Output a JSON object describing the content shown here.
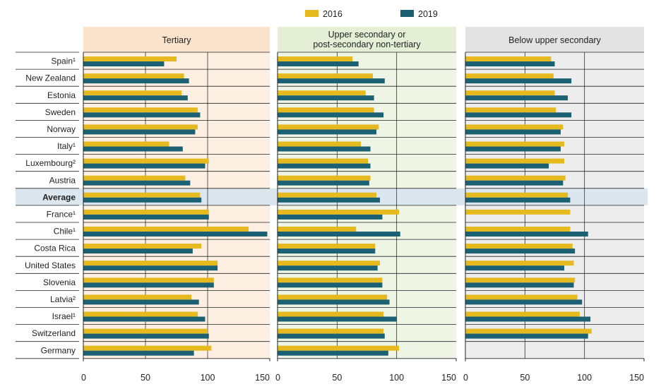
{
  "chart_data": {
    "type": "bar",
    "orientation": "horizontal",
    "legend": {
      "position": "top-center",
      "items": [
        {
          "label": "2016",
          "color": "#e6b91e"
        },
        {
          "label": "2019",
          "color": "#1b6173"
        }
      ]
    },
    "categories": [
      "Spain¹",
      "New Zealand",
      "Estonia",
      "Sweden",
      "Norway",
      "Italy¹",
      "Luxembourg²",
      "Austria",
      "Average",
      "France¹",
      "Chile¹",
      "Costa Rica",
      "United States",
      "Slovenia",
      "Latvia²",
      "Israel¹",
      "Switzerland",
      "Germany"
    ],
    "highlight_category": "Average",
    "panels": [
      {
        "title": "Tertiary",
        "background": "#fdf0e3",
        "header_background": "#fbe3cc",
        "xlim": [
          0,
          150
        ],
        "ticks": [
          0,
          50,
          100,
          150
        ],
        "series": [
          {
            "name": "2016",
            "values": [
              75,
              81,
              79,
              92,
              92,
              69,
              101,
              82,
              94,
              101,
              133,
              95,
              108,
              105,
              87,
              92,
              100,
              103
            ]
          },
          {
            "name": "2019",
            "values": [
              65,
              85,
              84,
              94,
              90,
              80,
              98,
              86,
              95,
              101,
              148,
              88,
              108,
              105,
              93,
              98,
              101,
              89
            ]
          }
        ]
      },
      {
        "title": "Upper secondary or post-secondary non-tertiary",
        "title_lines": [
          "Upper secondary or",
          "post-secondary non-tertiary"
        ],
        "background": "#eef5e4",
        "header_background": "#e4efd6",
        "xlim": [
          0,
          150
        ],
        "ticks": [
          0,
          50,
          100,
          150
        ],
        "series": [
          {
            "name": "2016",
            "values": [
              63,
              80,
              74,
              81,
              85,
              70,
              76,
              78,
              83,
              102,
              66,
              82,
              86,
              88,
              92,
              89,
              89,
              102
            ]
          },
          {
            "name": "2019",
            "values": [
              68,
              90,
              81,
              89,
              83,
              78,
              78,
              77,
              86,
              88,
              103,
              82,
              84,
              88,
              94,
              100,
              90,
              93
            ]
          }
        ]
      },
      {
        "title": "Below upper secondary",
        "background": "#ededed",
        "header_background": "#e3e3e3",
        "xlim": [
          0,
          150
        ],
        "ticks": [
          0,
          50,
          100,
          150
        ],
        "series": [
          {
            "name": "2016",
            "values": [
              72,
              74,
              75,
              76,
              82,
              83,
              83,
              84,
              86,
              88,
              88,
              90,
              91,
              92,
              94,
              96,
              106,
              0
            ]
          },
          {
            "name": "2019",
            "values": [
              75,
              89,
              86,
              89,
              80,
              80,
              70,
              82,
              88,
              0,
              103,
              92,
              83,
              91,
              98,
              105,
              103,
              0
            ]
          }
        ]
      }
    ]
  }
}
